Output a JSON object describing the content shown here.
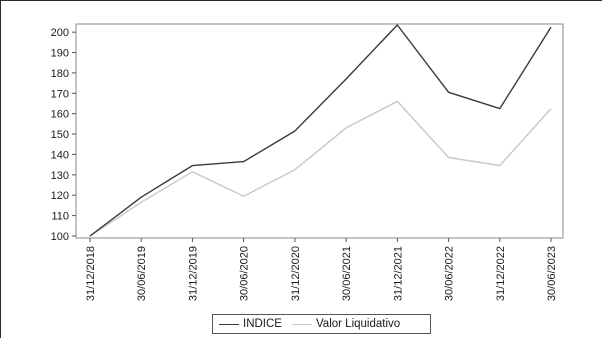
{
  "chart_data": {
    "type": "line",
    "x": [
      "31/12/2018",
      "30/06/2019",
      "31/12/2019",
      "30/06/2020",
      "31/12/2020",
      "30/06/2021",
      "31/12/2021",
      "30/06/2022",
      "31/12/2022",
      "30/06/2023"
    ],
    "series": [
      {
        "name": "INDICE",
        "color": "#3a3a3a",
        "values": [
          100,
          119,
          134.5,
          136.5,
          151.5,
          177,
          203.5,
          170.5,
          162.5,
          202.5
        ]
      },
      {
        "name": "Valor Liquidativo",
        "color": "#c8c8c8",
        "values": [
          100,
          116.5,
          131.5,
          119.5,
          132.5,
          153,
          166,
          138.5,
          134.5,
          162.5
        ]
      }
    ],
    "y_ticks": [
      100,
      110,
      120,
      130,
      140,
      150,
      160,
      170,
      180,
      190,
      200
    ],
    "ylim": [
      99,
      204
    ],
    "title": "",
    "xlabel": "",
    "ylabel": "",
    "grid": false,
    "legend_position": "bottom"
  }
}
